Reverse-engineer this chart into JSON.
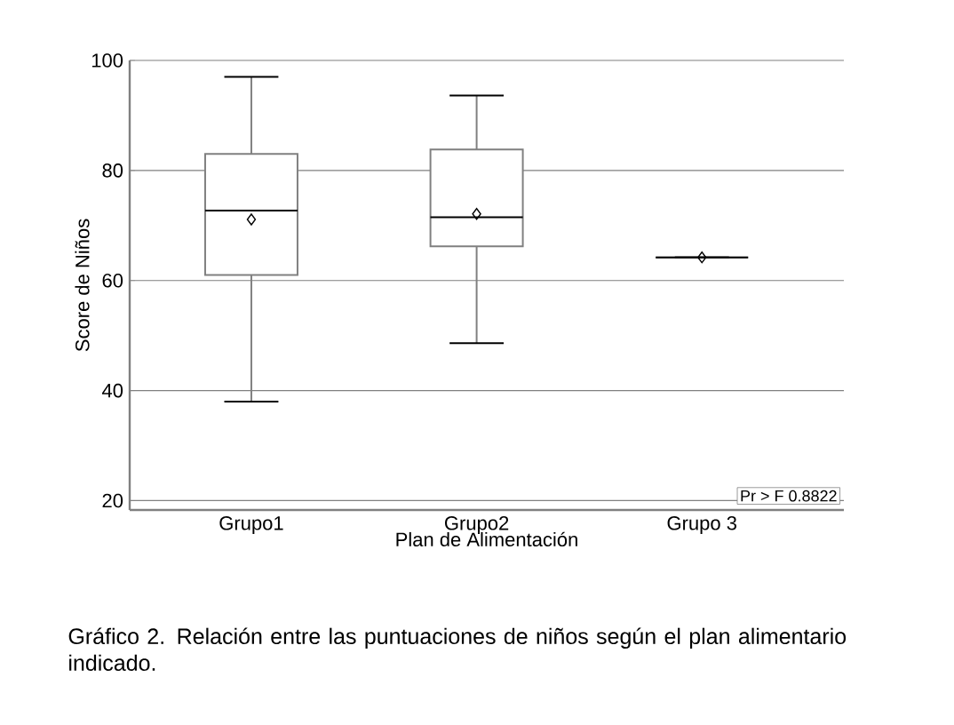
{
  "chart_data": {
    "type": "box",
    "xlabel": "Plan de Alimentación",
    "ylabel": "Score de Niños",
    "categories": [
      "Grupo1",
      "Grupo2",
      "Grupo 3"
    ],
    "boxes": [
      {
        "low": 38,
        "q1": 61,
        "median": 72.7,
        "q3": 83,
        "high": 97,
        "mean": 71.1
      },
      {
        "low": 48.6,
        "q1": 66.2,
        "median": 71.5,
        "q3": 83.8,
        "high": 93.6,
        "mean": 72.1
      },
      {
        "low": 64.2,
        "q1": 64.2,
        "median": 64.2,
        "q3": 64.2,
        "high": 64.2,
        "mean": 64.2
      }
    ],
    "color": "#808080",
    "ylim": [
      18.3,
      100
    ],
    "yticks": [
      20,
      40,
      60,
      80,
      100
    ],
    "grid": "y",
    "marker": "diamond",
    "annotations": [
      "Pr > F 0.8822",
      "Gráfico 2. Relación entre las puntuaciones de niños según el plan alimentario indicado."
    ]
  }
}
